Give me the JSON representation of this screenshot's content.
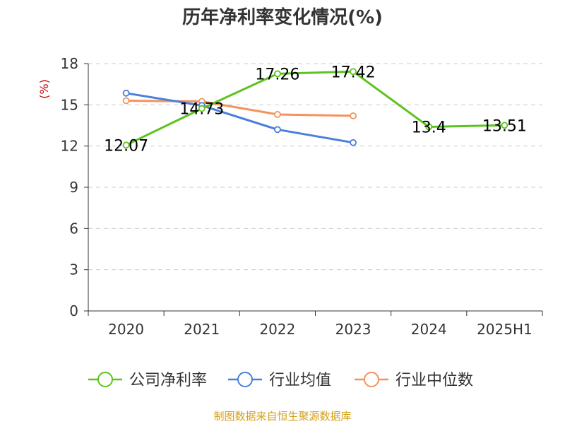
{
  "title": "历年净利率变化情况(%)",
  "source": "制图数据来自恒生聚源数据库",
  "chart_data": {
    "type": "line",
    "title": "历年净利率变化情况(%)",
    "ylabel": "(%)",
    "categories": [
      "2020",
      "2021",
      "2022",
      "2023",
      "2024",
      "2025H1"
    ],
    "ylim": [
      0,
      18
    ],
    "yticks": [
      0,
      3,
      6,
      9,
      12,
      15,
      18
    ],
    "grid": true,
    "legend_position": "bottom",
    "series": [
      {
        "name": "公司净利率",
        "color": "#5cc31f",
        "values": [
          12.07,
          14.73,
          17.26,
          17.42,
          13.4,
          13.51
        ],
        "labels": [
          "12.07",
          "14.73",
          "17.26",
          "17.42",
          "13.4",
          "13.51"
        ]
      },
      {
        "name": "行业均值",
        "color": "#4a7fdc",
        "values": [
          15.85,
          14.95,
          13.2,
          12.25,
          null,
          null
        ]
      },
      {
        "name": "行业中位数",
        "color": "#f5925d",
        "values": [
          15.3,
          15.25,
          14.3,
          14.2,
          null,
          null
        ]
      }
    ]
  }
}
